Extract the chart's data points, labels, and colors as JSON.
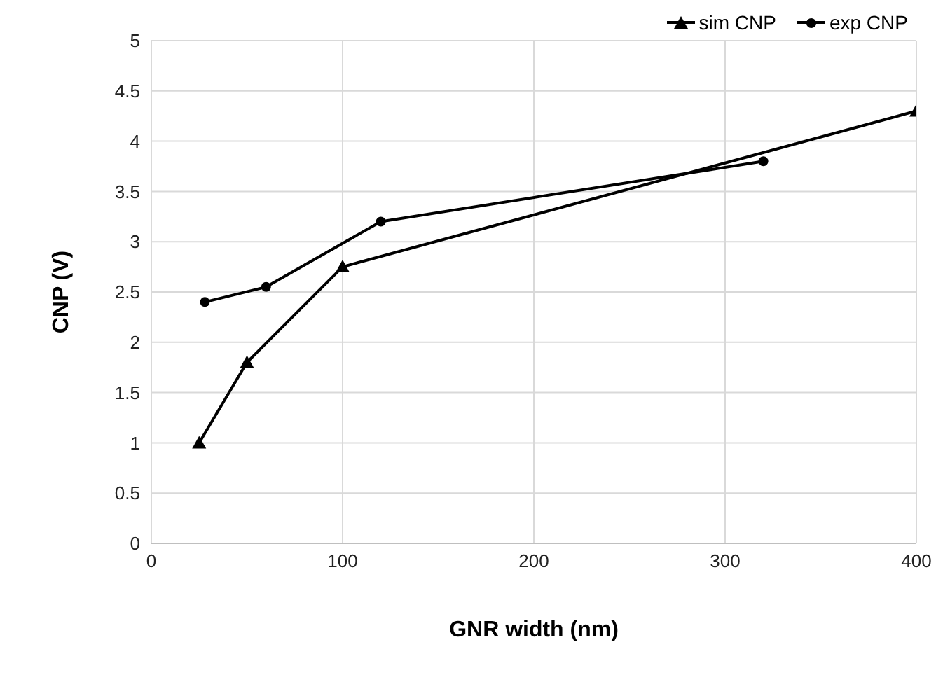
{
  "chart_data": {
    "type": "line",
    "xlabel": "GNR width (nm)",
    "ylabel": "CNP (V)",
    "xlim": [
      0,
      400
    ],
    "xticks": [
      0,
      100,
      200,
      300,
      400
    ],
    "ylim": [
      0,
      5
    ],
    "yticks": [
      0,
      0.5,
      1,
      1.5,
      2,
      2.5,
      3,
      3.5,
      4,
      4.5,
      5
    ],
    "grid": true,
    "legend": "top right",
    "line_style": "solid",
    "series": [
      {
        "name": "sim CNP",
        "color": "#000000",
        "marker": "triangle",
        "x": [
          25,
          50,
          100,
          400
        ],
        "values": [
          1,
          1.8,
          2.75,
          4.3
        ]
      },
      {
        "name": "exp CNP",
        "color": "#000000",
        "marker": "circle",
        "x": [
          28,
          60,
          120,
          320
        ],
        "values": [
          2.4,
          2.55,
          3.2,
          3.8
        ]
      }
    ]
  }
}
